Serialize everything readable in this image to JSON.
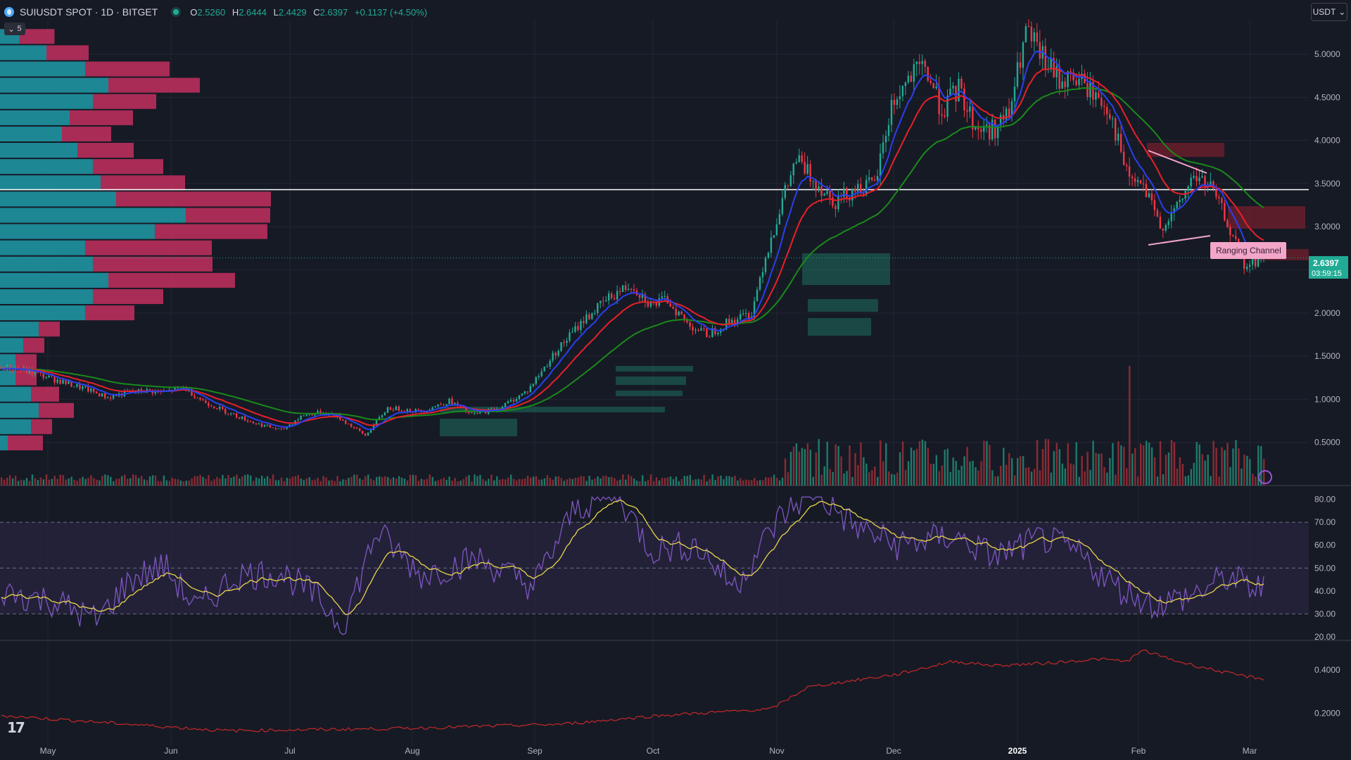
{
  "header": {
    "symbol": "SUIUSDT SPOT · 1D · BITGET",
    "o_label": "O",
    "o": "2.5260",
    "h_label": "H",
    "h": "2.6444",
    "l_label": "L",
    "l": "2.4429",
    "c_label": "C",
    "c": "2.6397",
    "change": "+0.1137 (+4.50%)"
  },
  "collapse_count": "5",
  "currency": "USDT",
  "last_price": {
    "value": "2.6397",
    "countdown": "03:59:15"
  },
  "annotation": {
    "label": "Ranging Channel"
  },
  "colors": {
    "bg": "#161a25",
    "up": "#22ab94",
    "down": "#f23645",
    "ema_fast": "#2b3ff0",
    "ema_mid": "#e8202a",
    "ema_slow": "#1a8a1a",
    "rsi": "#7e57c2",
    "rsi_ma": "#e8d44d"
  },
  "chart_data": {
    "type": "candlestick",
    "x_ticks": [
      "May",
      "Jun",
      "Jul",
      "Aug",
      "Sep",
      "Oct",
      "Nov",
      "Dec",
      "2025",
      "Feb",
      "Mar"
    ],
    "price_ticks": [
      "5.0000",
      "4.5000",
      "4.0000",
      "3.5000",
      "3.0000",
      "2.5000",
      "2.0000",
      "1.5000",
      "1.0000",
      "0.5000"
    ],
    "price_range": [
      0.0,
      5.4
    ],
    "key_level": 3.43,
    "price_path": [
      [
        0,
        1.38
      ],
      [
        10,
        1.32
      ],
      [
        20,
        1.22
      ],
      [
        30,
        1.12
      ],
      [
        38,
        1.02
      ],
      [
        45,
        1.08
      ],
      [
        52,
        1.1
      ],
      [
        58,
        1.08
      ],
      [
        65,
        1.14
      ],
      [
        72,
        0.98
      ],
      [
        80,
        0.86
      ],
      [
        90,
        0.73
      ],
      [
        100,
        0.64
      ],
      [
        108,
        0.82
      ],
      [
        115,
        0.85
      ],
      [
        120,
        0.8
      ],
      [
        130,
        0.58
      ],
      [
        138,
        0.9
      ],
      [
        150,
        0.86
      ],
      [
        160,
        0.98
      ],
      [
        168,
        0.82
      ],
      [
        178,
        0.9
      ],
      [
        188,
        1.1
      ],
      [
        198,
        1.55
      ],
      [
        208,
        1.92
      ],
      [
        218,
        2.2
      ],
      [
        225,
        2.33
      ],
      [
        232,
        2.1
      ],
      [
        238,
        2.15
      ],
      [
        245,
        1.88
      ],
      [
        252,
        1.75
      ],
      [
        260,
        1.9
      ],
      [
        268,
        2.0
      ],
      [
        272,
        2.55
      ],
      [
        278,
        3.2
      ],
      [
        284,
        3.78
      ],
      [
        290,
        3.55
      ],
      [
        298,
        3.3
      ],
      [
        305,
        3.45
      ],
      [
        312,
        3.48
      ],
      [
        318,
        4.4
      ],
      [
        324,
        4.7
      ],
      [
        330,
        4.85
      ],
      [
        336,
        4.35
      ],
      [
        342,
        4.6
      ],
      [
        348,
        4.15
      ],
      [
        354,
        4.12
      ],
      [
        360,
        4.3
      ],
      [
        366,
        5.25
      ],
      [
        372,
        4.95
      ],
      [
        378,
        4.7
      ],
      [
        384,
        4.72
      ],
      [
        390,
        4.55
      ],
      [
        396,
        4.35
      ],
      [
        402,
        3.6
      ],
      [
        408,
        3.45
      ],
      [
        414,
        3.0
      ],
      [
        420,
        3.2
      ],
      [
        426,
        3.6
      ],
      [
        432,
        3.45
      ],
      [
        438,
        3.05
      ],
      [
        444,
        2.52
      ],
      [
        450,
        2.64
      ]
    ],
    "rsi_ticks": [
      "80.00",
      "70.00",
      "60.00",
      "50.00",
      "40.00",
      "30.00",
      "20.00"
    ],
    "rsi_bands": [
      30,
      50,
      70
    ],
    "rsi_path": [
      [
        0,
        40
      ],
      [
        20,
        35
      ],
      [
        34,
        27
      ],
      [
        46,
        45
      ],
      [
        58,
        51
      ],
      [
        70,
        32
      ],
      [
        84,
        47
      ],
      [
        100,
        48
      ],
      [
        112,
        38
      ],
      [
        122,
        25
      ],
      [
        134,
        66
      ],
      [
        150,
        47
      ],
      [
        170,
        54
      ],
      [
        190,
        42
      ],
      [
        205,
        76
      ],
      [
        220,
        83
      ],
      [
        232,
        58
      ],
      [
        248,
        60
      ],
      [
        262,
        42
      ],
      [
        278,
        72
      ],
      [
        290,
        84
      ],
      [
        305,
        68
      ],
      [
        320,
        60
      ],
      [
        340,
        64
      ],
      [
        355,
        55
      ],
      [
        372,
        63
      ],
      [
        385,
        56
      ],
      [
        398,
        42
      ],
      [
        412,
        34
      ],
      [
        425,
        38
      ],
      [
        438,
        46
      ],
      [
        448,
        41
      ]
    ],
    "lower_ticks": [
      "0.4000",
      "0.2000"
    ],
    "lower_path": [
      [
        0,
        0.19
      ],
      [
        80,
        0.12
      ],
      [
        140,
        0.13
      ],
      [
        200,
        0.15
      ],
      [
        235,
        0.19
      ],
      [
        275,
        0.22
      ],
      [
        288,
        0.32
      ],
      [
        298,
        0.34
      ],
      [
        320,
        0.38
      ],
      [
        340,
        0.44
      ],
      [
        355,
        0.42
      ],
      [
        372,
        0.43
      ],
      [
        392,
        0.45
      ],
      [
        402,
        0.44
      ],
      [
        408,
        0.49
      ],
      [
        420,
        0.44
      ],
      [
        440,
        0.38
      ],
      [
        450,
        0.36
      ]
    ]
  }
}
